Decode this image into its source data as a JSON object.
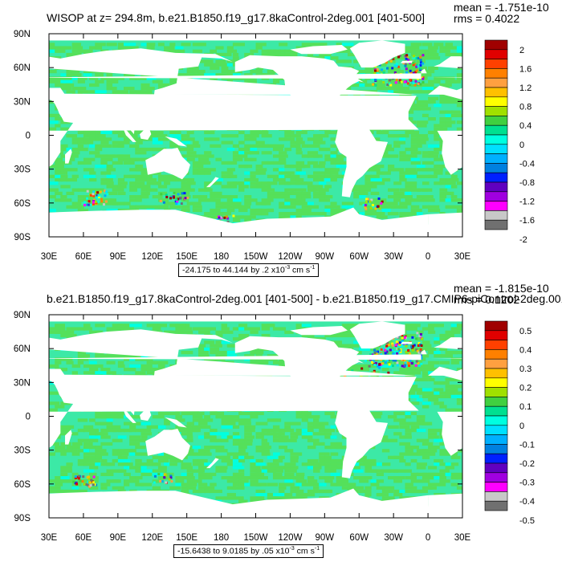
{
  "chart_data": [
    {
      "type": "heatmap",
      "title": "WISOP at z= 294.8m, b.e21.B1850.f19_g17.8kaControl-2deg.001 [401-500]",
      "mean_label": "mean = -1.751e-10",
      "rms_label": "rms = 0.4022",
      "x_ticks": [
        "30E",
        "60E",
        "90E",
        "120E",
        "150E",
        "180",
        "150W",
        "120W",
        "90W",
        "60W",
        "30W",
        "0",
        "30E"
      ],
      "y_ticks": [
        "90N",
        "60N",
        "30N",
        "0",
        "30S",
        "60S",
        "90S"
      ],
      "xlim": [
        30,
        390
      ],
      "ylim": [
        -90,
        90
      ],
      "colorbar_labels": [
        "2",
        "1.6",
        "1.2",
        "0.8",
        "0.4",
        "0",
        "-0.4",
        "-0.8",
        "-1.2",
        "-1.6",
        "-2"
      ],
      "range_text": "-24.175 to 44.144 by .2 x10",
      "range_exp": "-3",
      "range_units": " cm s",
      "range_units_exp": "-1"
    },
    {
      "type": "heatmap",
      "title": "b.e21.B1850.f19_g17.8kaControl-2deg.001 [401-500] - b.e21.B1850.f19_g17.CMIP6-piControl-2deg.001",
      "mean_label": "mean = -1.815e-10",
      "rms_label": "rms = 0.1202",
      "x_ticks": [
        "30E",
        "60E",
        "90E",
        "120E",
        "150E",
        "180",
        "150W",
        "120W",
        "90W",
        "60W",
        "30W",
        "0",
        "30E"
      ],
      "y_ticks": [
        "90N",
        "60N",
        "30N",
        "0",
        "30S",
        "60S",
        "90S"
      ],
      "xlim": [
        30,
        390
      ],
      "ylim": [
        -90,
        90
      ],
      "colorbar_labels": [
        "0.5",
        "0.4",
        "0.3",
        "0.2",
        "0.1",
        "0",
        "-0.1",
        "-0.2",
        "-0.3",
        "-0.4",
        "-0.5"
      ],
      "range_text": "-15.6438 to 9.0185 by .05 x10",
      "range_exp": "-3",
      "range_units": " cm s",
      "range_units_exp": "-1"
    }
  ],
  "colors": {
    "colorbar": [
      "#a00000",
      "#e00000",
      "#ff4000",
      "#ff8000",
      "#ffa040",
      "#ffc000",
      "#ffff00",
      "#a0e000",
      "#40d040",
      "#00e090",
      "#00ffe0",
      "#00e0ff",
      "#00b0ff",
      "#0080e0",
      "#0020ff",
      "#6000c0",
      "#a000e0",
      "#ff00ff",
      "#c8c8c8",
      "#707070"
    ],
    "ocean_main": "#3ce9a6",
    "ocean_alt": "#55e05a",
    "ocean_cyan": "#00ffe0",
    "land": "#ffffff"
  }
}
